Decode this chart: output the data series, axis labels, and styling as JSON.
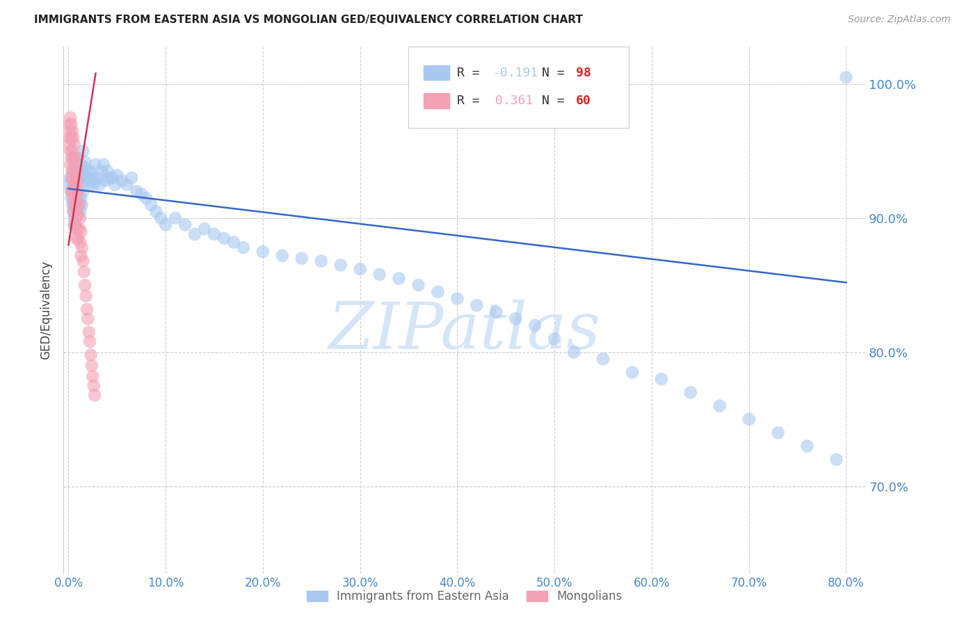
{
  "title": "IMMIGRANTS FROM EASTERN ASIA VS MONGOLIAN GED/EQUIVALENCY CORRELATION CHART",
  "source": "Source: ZipAtlas.com",
  "ylabel": "GED/Equivalency",
  "xlim": [
    -0.005,
    0.82
  ],
  "ylim": [
    0.635,
    1.028
  ],
  "yticks": [
    0.7,
    0.8,
    0.9,
    1.0
  ],
  "xticks": [
    0.0,
    0.1,
    0.2,
    0.3,
    0.4,
    0.5,
    0.6,
    0.7,
    0.8
  ],
  "blue_R": -0.191,
  "blue_N": 98,
  "pink_R": 0.361,
  "pink_N": 60,
  "blue_color": "#A8C8F0",
  "pink_color": "#F4A0B5",
  "blue_line_color": "#3366CC",
  "pink_line_color": "#CC3355",
  "grid_color": "#BBBBBB",
  "tick_color": "#4488CC",
  "title_color": "#222222",
  "source_color": "#999999",
  "watermark_color": "#D5E5F8",
  "legend_blue_label": "Immigrants from Eastern Asia",
  "legend_pink_label": "Mongolians",
  "blue_trend_x": [
    0.0,
    0.8
  ],
  "blue_trend_y": [
    0.922,
    0.852
  ],
  "pink_trend_x": [
    0.0,
    0.028
  ],
  "pink_trend_y": [
    0.88,
    1.008
  ],
  "blue_scatter_x": [
    0.001,
    0.002,
    0.003,
    0.003,
    0.004,
    0.004,
    0.005,
    0.005,
    0.005,
    0.006,
    0.006,
    0.006,
    0.007,
    0.007,
    0.007,
    0.008,
    0.008,
    0.008,
    0.009,
    0.009,
    0.01,
    0.01,
    0.011,
    0.011,
    0.012,
    0.012,
    0.013,
    0.013,
    0.014,
    0.014,
    0.015,
    0.015,
    0.016,
    0.017,
    0.018,
    0.019,
    0.02,
    0.021,
    0.022,
    0.023,
    0.025,
    0.026,
    0.028,
    0.03,
    0.032,
    0.034,
    0.036,
    0.038,
    0.04,
    0.042,
    0.045,
    0.048,
    0.05,
    0.055,
    0.06,
    0.065,
    0.07,
    0.075,
    0.08,
    0.085,
    0.09,
    0.095,
    0.1,
    0.11,
    0.12,
    0.13,
    0.14,
    0.15,
    0.16,
    0.17,
    0.18,
    0.2,
    0.22,
    0.24,
    0.26,
    0.28,
    0.3,
    0.32,
    0.34,
    0.36,
    0.38,
    0.4,
    0.42,
    0.44,
    0.46,
    0.48,
    0.5,
    0.52,
    0.55,
    0.58,
    0.61,
    0.64,
    0.67,
    0.7,
    0.73,
    0.76,
    0.79,
    0.8
  ],
  "blue_scatter_y": [
    0.925,
    0.93,
    0.92,
    0.915,
    0.935,
    0.91,
    0.945,
    0.925,
    0.905,
    0.94,
    0.92,
    0.9,
    0.935,
    0.915,
    0.895,
    0.93,
    0.912,
    0.892,
    0.925,
    0.905,
    0.945,
    0.915,
    0.935,
    0.91,
    0.93,
    0.905,
    0.94,
    0.915,
    0.935,
    0.91,
    0.95,
    0.92,
    0.938,
    0.942,
    0.928,
    0.935,
    0.93,
    0.925,
    0.935,
    0.928,
    0.93,
    0.925,
    0.94,
    0.93,
    0.925,
    0.935,
    0.94,
    0.928,
    0.935,
    0.93,
    0.93,
    0.925,
    0.932,
    0.928,
    0.925,
    0.93,
    0.92,
    0.918,
    0.915,
    0.91,
    0.905,
    0.9,
    0.895,
    0.9,
    0.895,
    0.888,
    0.892,
    0.888,
    0.885,
    0.882,
    0.878,
    0.875,
    0.872,
    0.87,
    0.868,
    0.865,
    0.862,
    0.858,
    0.855,
    0.85,
    0.845,
    0.84,
    0.835,
    0.83,
    0.825,
    0.82,
    0.81,
    0.8,
    0.795,
    0.785,
    0.78,
    0.77,
    0.76,
    0.75,
    0.74,
    0.73,
    0.72,
    1.005
  ],
  "pink_scatter_x": [
    0.001,
    0.001,
    0.001,
    0.002,
    0.002,
    0.002,
    0.002,
    0.003,
    0.003,
    0.003,
    0.003,
    0.003,
    0.004,
    0.004,
    0.004,
    0.004,
    0.005,
    0.005,
    0.005,
    0.005,
    0.005,
    0.006,
    0.006,
    0.006,
    0.006,
    0.006,
    0.007,
    0.007,
    0.007,
    0.007,
    0.008,
    0.008,
    0.008,
    0.008,
    0.009,
    0.009,
    0.009,
    0.01,
    0.01,
    0.01,
    0.011,
    0.011,
    0.012,
    0.012,
    0.013,
    0.013,
    0.014,
    0.015,
    0.016,
    0.017,
    0.018,
    0.019,
    0.02,
    0.021,
    0.022,
    0.023,
    0.024,
    0.025,
    0.026,
    0.027
  ],
  "pink_scatter_y": [
    0.96,
    0.97,
    0.955,
    0.975,
    0.965,
    0.95,
    0.94,
    0.97,
    0.96,
    0.945,
    0.93,
    0.92,
    0.965,
    0.95,
    0.935,
    0.92,
    0.96,
    0.945,
    0.93,
    0.915,
    0.905,
    0.955,
    0.94,
    0.925,
    0.91,
    0.895,
    0.945,
    0.928,
    0.912,
    0.895,
    0.935,
    0.918,
    0.902,
    0.885,
    0.928,
    0.91,
    0.892,
    0.92,
    0.902,
    0.885,
    0.91,
    0.892,
    0.9,
    0.882,
    0.89,
    0.872,
    0.878,
    0.868,
    0.86,
    0.85,
    0.842,
    0.832,
    0.825,
    0.815,
    0.808,
    0.798,
    0.79,
    0.782,
    0.775,
    0.768
  ]
}
